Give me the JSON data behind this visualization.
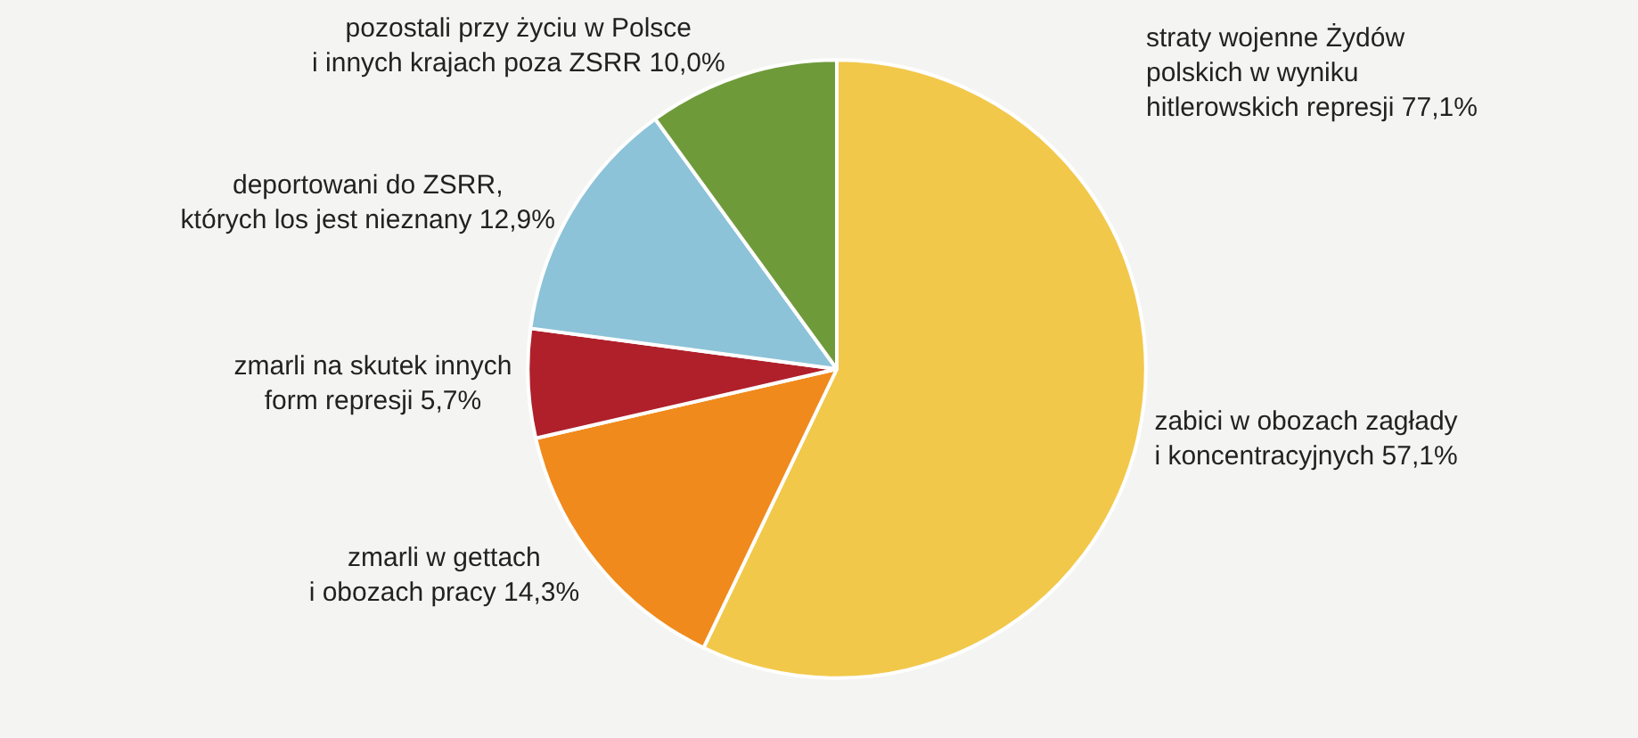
{
  "chart_data": {
    "type": "pie",
    "categories": [
      "zabici w obozach zagłady\ni koncentracyjnych",
      "zmarli w gettach\ni obozach pracy",
      "zmarli na skutek innych\nform represji",
      "deportowani do ZSRR,\nktórych los jest nieznany",
      "pozostali przy życiu w Polsce\ni innych krajach poza ZSRR"
    ],
    "values": [
      57.1,
      14.3,
      5.7,
      12.9,
      10.0
    ],
    "value_labels": [
      "57,1%",
      "14,3%",
      "5,7%",
      "12,9%",
      "10,0%"
    ],
    "colors": [
      "#f2c84b",
      "#f08a1c",
      "#b0202a",
      "#8cc3d8",
      "#6f9a3a"
    ],
    "annotations": [
      "straty wojenne Żydów\npolskich w wyniku\nhitlerowskich represji 77,1%"
    ],
    "legend": false
  }
}
